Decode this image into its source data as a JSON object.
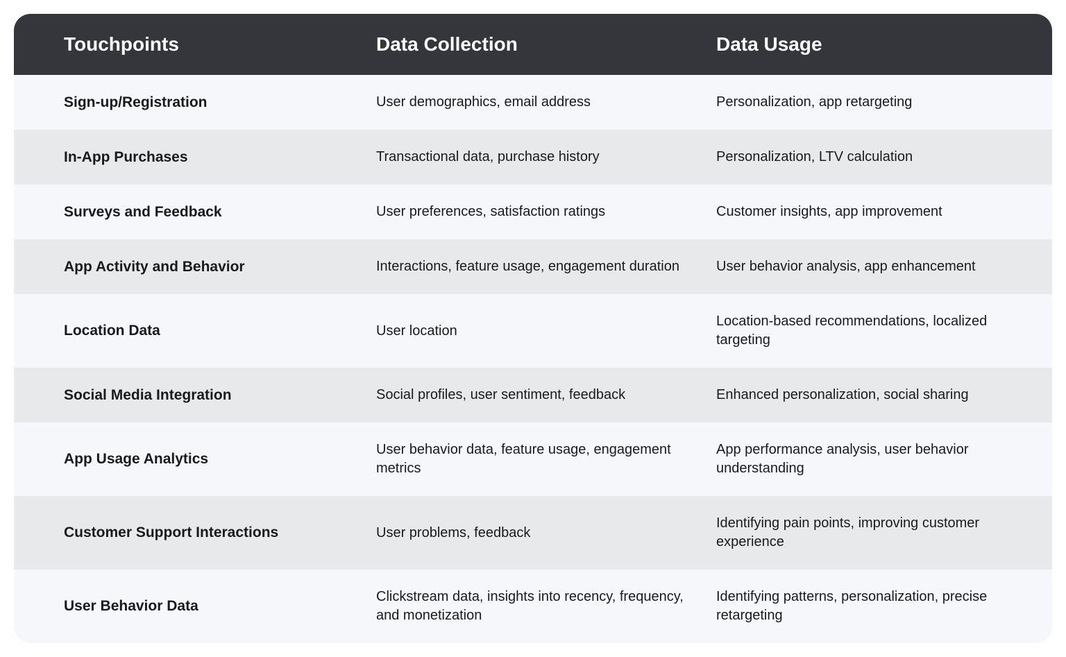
{
  "table": {
    "header_bg": "#34363c",
    "header_text_color": "#ffffff",
    "row_odd_bg": "#f5f7fa",
    "row_even_bg": "#e8e9eb",
    "border_radius": 24,
    "header_fontsize": 28,
    "touchpoint_fontsize": 21,
    "cell_fontsize": 20,
    "columns": [
      "Touchpoints",
      "Data Collection",
      "Data Usage"
    ],
    "rows": [
      {
        "touchpoint": "Sign-up/Registration",
        "collection": "User demographics, email address",
        "usage": "Personalization, app retargeting"
      },
      {
        "touchpoint": "In-App Purchases",
        "collection": "Transactional data, purchase history",
        "usage": "Personalization, LTV calculation"
      },
      {
        "touchpoint": "Surveys and Feedback",
        "collection": "User preferences, satisfaction ratings",
        "usage": "Customer insights, app improvement"
      },
      {
        "touchpoint": "App Activity and Behavior",
        "collection": "Interactions, feature usage, engagement duration",
        "usage": "User behavior analysis, app enhancement"
      },
      {
        "touchpoint": "Location Data",
        "collection": "User location",
        "usage": "Location-based recommendations, localized targeting"
      },
      {
        "touchpoint": "Social Media Integration",
        "collection": "Social profiles, user sentiment, feedback",
        "usage": "Enhanced personalization, social sharing"
      },
      {
        "touchpoint": "App Usage Analytics",
        "collection": "User behavior data, feature usage, engagement metrics",
        "usage": "App performance analysis, user behavior understanding"
      },
      {
        "touchpoint": "Customer Support Interactions",
        "collection": "User problems, feedback",
        "usage": "Identifying pain points, improving customer experience"
      },
      {
        "touchpoint": "User Behavior Data",
        "collection": "Clickstream data, insights into recency, frequency, and monetization",
        "usage": "Identifying patterns, personalization, precise retargeting"
      }
    ]
  }
}
